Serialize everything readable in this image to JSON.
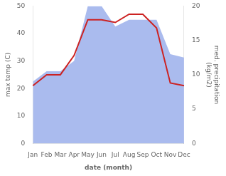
{
  "chart_data": {
    "type": "line",
    "categories": [
      "Jan",
      "Feb",
      "Mar",
      "Apr",
      "May",
      "Jun",
      "Jul",
      "Aug",
      "Sep",
      "Oct",
      "Nov",
      "Dec"
    ],
    "xlabel": "date (month)",
    "ylabel": "max temp (C)",
    "y2label": "med. precipitation\n(kg/m2)",
    "ylim": [
      0,
      50
    ],
    "yticks": [
      0,
      10,
      20,
      30,
      40,
      50
    ],
    "y2lim": [
      0,
      20
    ],
    "y2ticks": [
      0,
      5,
      10,
      15,
      20
    ],
    "grid": false,
    "series": [
      {
        "type": "line",
        "color": "#cc2222",
        "values": [
          21,
          25,
          25,
          32,
          45,
          45,
          44,
          47,
          47,
          42,
          22,
          21
        ]
      },
      {
        "type": "area",
        "color": "#aabbee",
        "axis": "y2",
        "values": [
          9,
          10.5,
          10.5,
          12,
          20,
          20,
          17,
          18,
          18,
          18,
          13,
          12.5
        ]
      }
    ]
  }
}
